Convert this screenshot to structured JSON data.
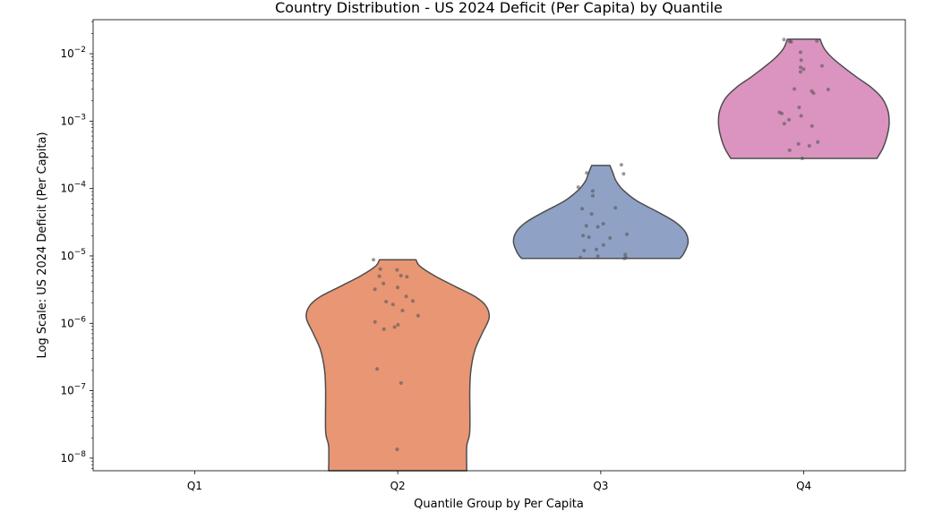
{
  "chart_data": {
    "type": "violin",
    "title": "Country Distribution - US 2024 Deficit (Per Capita) by Quantile",
    "xlabel": "Quantile Group by Per Capita",
    "ylabel": "Log Scale: US 2024 Deficit (Per Capita)",
    "yscale": "log",
    "ylim": [
      6.5e-09,
      0.032
    ],
    "y_ticks": [
      {
        "value": 1e-08,
        "base": "10",
        "exp": "−8"
      },
      {
        "value": 1e-07,
        "base": "10",
        "exp": "−7"
      },
      {
        "value": 1e-06,
        "base": "10",
        "exp": "−6"
      },
      {
        "value": 1e-05,
        "base": "10",
        "exp": "−5"
      },
      {
        "value": 0.0001,
        "base": "10",
        "exp": "−4"
      },
      {
        "value": 0.001,
        "base": "10",
        "exp": "−3"
      },
      {
        "value": 0.01,
        "base": "10",
        "exp": "−2"
      }
    ],
    "categories": [
      "Q1",
      "Q2",
      "Q3",
      "Q4"
    ],
    "grid": false,
    "legend": "none",
    "series": [
      {
        "category": "Q1",
        "color": "#66c2a5",
        "points": []
      },
      {
        "category": "Q2",
        "color": "#e99675",
        "min": 6.5e-09,
        "max": 8.8e-06,
        "profile": [
          [
            6.5e-09,
            0.68
          ],
          [
            1.5e-08,
            0.68
          ],
          [
            2.5e-08,
            0.71
          ],
          [
            1e-07,
            0.71
          ],
          [
            2e-07,
            0.72
          ],
          [
            4e-07,
            0.76
          ],
          [
            7e-07,
            0.83
          ],
          [
            1.2e-06,
            0.9
          ],
          [
            1.8e-06,
            0.87
          ],
          [
            2.5e-06,
            0.76
          ],
          [
            3.5e-06,
            0.57
          ],
          [
            5e-06,
            0.37
          ],
          [
            7e-06,
            0.22
          ],
          [
            8.8e-06,
            0.18
          ]
        ],
        "points": [
          1.35e-08,
          1.3e-07,
          2.1e-07,
          8.2e-07,
          8.8e-07,
          9.5e-07,
          1.05e-06,
          1.3e-06,
          1.55e-06,
          1.9e-06,
          2.1e-06,
          2.15e-06,
          2.5e-06,
          3.2e-06,
          3.4e-06,
          3.9e-06,
          4.9e-06,
          5e-06,
          5.1e-06,
          6.2e-06,
          6.4e-06,
          8.8e-06
        ]
      },
      {
        "category": "Q3",
        "color": "#8fa2c5",
        "min": 9.2e-06,
        "max": 0.00022,
        "profile": [
          [
            9.2e-06,
            0.78
          ],
          [
            1.1e-05,
            0.82
          ],
          [
            1.6e-05,
            0.86
          ],
          [
            2.3e-05,
            0.83
          ],
          [
            3.2e-05,
            0.73
          ],
          [
            4.5e-05,
            0.56
          ],
          [
            6.5e-05,
            0.36
          ],
          [
            9.5e-05,
            0.22
          ],
          [
            0.00013,
            0.15
          ],
          [
            0.00017,
            0.12
          ],
          [
            0.00022,
            0.09
          ]
        ],
        "points": [
          9.2e-06,
          9.4e-06,
          9.5e-06,
          9.9e-06,
          1.05e-05,
          1.2e-05,
          1.25e-05,
          1.45e-05,
          1.85e-05,
          1.9e-05,
          2e-05,
          2.1e-05,
          2.7e-05,
          2.8e-05,
          3e-05,
          4.2e-05,
          5e-05,
          5.2e-05,
          7.8e-05,
          9.2e-05,
          0.000105,
          0.000165,
          0.00017,
          0.000225
        ]
      },
      {
        "category": "Q4",
        "color": "#da94bf",
        "min": 0.00028,
        "max": 0.0165,
        "profile": [
          [
            0.00028,
            0.72
          ],
          [
            0.0004,
            0.78
          ],
          [
            0.0006,
            0.82
          ],
          [
            0.0009,
            0.84
          ],
          [
            0.0014,
            0.83
          ],
          [
            0.0022,
            0.77
          ],
          [
            0.0032,
            0.66
          ],
          [
            0.0045,
            0.52
          ],
          [
            0.0065,
            0.38
          ],
          [
            0.009,
            0.27
          ],
          [
            0.012,
            0.2
          ],
          [
            0.0165,
            0.16
          ]
        ],
        "points": [
          0.00028,
          0.00037,
          0.00043,
          0.00046,
          0.00049,
          0.00085,
          0.00092,
          0.00105,
          0.0012,
          0.0013,
          0.00135,
          0.0016,
          0.0026,
          0.0028,
          0.00295,
          0.003,
          0.0054,
          0.0059,
          0.0063,
          0.0066,
          0.008,
          0.0105,
          0.015,
          0.0152,
          0.0155,
          0.0162
        ]
      }
    ]
  }
}
